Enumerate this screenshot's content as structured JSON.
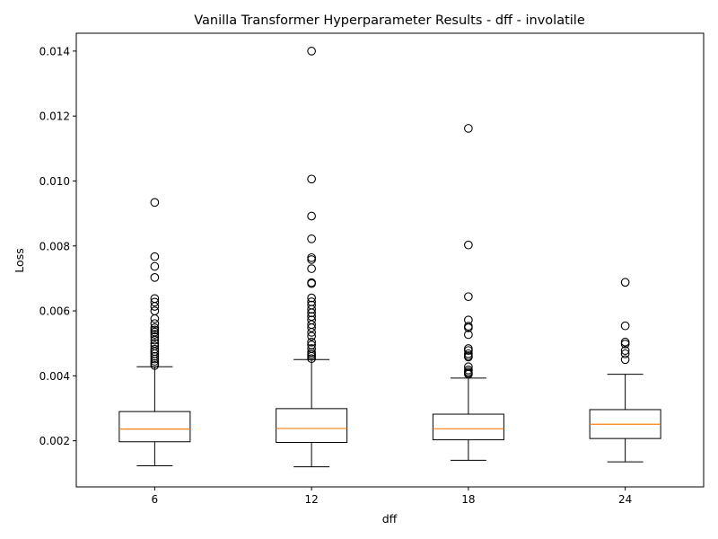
{
  "chart_data": {
    "type": "box",
    "title": "Vanilla Transformer Hyperparameter Results - dff - involatile",
    "xlabel": "dff",
    "ylabel": "Loss",
    "ylim": [
      0.00058,
      0.01455
    ],
    "yticks": [
      0.002,
      0.004,
      0.006,
      0.008,
      0.01,
      0.012,
      0.014
    ],
    "ytick_labels": [
      "0.002",
      "0.004",
      "0.006",
      "0.008",
      "0.010",
      "0.012",
      "0.014"
    ],
    "categories": [
      "6",
      "12",
      "18",
      "24"
    ],
    "colors": {
      "median": "#ff7f0e",
      "box": "#000000",
      "flier": "#000000"
    },
    "boxes": [
      {
        "category": "6",
        "whisker_low": 0.00123,
        "q1": 0.00197,
        "median": 0.00236,
        "q3": 0.0029,
        "whisker_high": 0.00428,
        "fliers": [
          0.00934,
          0.00767,
          0.00737,
          0.00703,
          0.00638,
          0.00627,
          0.00614,
          0.006,
          0.00576,
          0.00561,
          0.00548,
          0.00541,
          0.00535,
          0.00528,
          0.0052,
          0.0051,
          0.005,
          0.00492,
          0.00482,
          0.00475,
          0.00468,
          0.0046,
          0.00452,
          0.00445,
          0.00438,
          0.00432
        ]
      },
      {
        "category": "12",
        "whisker_low": 0.0012,
        "q1": 0.00195,
        "median": 0.00238,
        "q3": 0.00299,
        "whisker_high": 0.0045,
        "fliers": [
          0.014,
          0.01006,
          0.00892,
          0.00822,
          0.00764,
          0.00758,
          0.0073,
          0.00687,
          0.00684,
          0.0064,
          0.00628,
          0.00618,
          0.00605,
          0.00594,
          0.00583,
          0.00572,
          0.00558,
          0.00548,
          0.00534,
          0.00522,
          0.00504,
          0.00495,
          0.00484,
          0.00472,
          0.00466,
          0.0046,
          0.00453
        ]
      },
      {
        "category": "18",
        "whisker_low": 0.0014,
        "q1": 0.00203,
        "median": 0.00237,
        "q3": 0.00282,
        "whisker_high": 0.00393,
        "fliers": [
          0.01162,
          0.00803,
          0.00644,
          0.00572,
          0.00553,
          0.00548,
          0.00527,
          0.00484,
          0.00478,
          0.00468,
          0.00462,
          0.00458,
          0.00428,
          0.00418,
          0.00412,
          0.00408,
          0.00405
        ]
      },
      {
        "category": "24",
        "whisker_low": 0.00135,
        "q1": 0.00207,
        "median": 0.00251,
        "q3": 0.00296,
        "whisker_high": 0.00405,
        "fliers": [
          0.00688,
          0.00554,
          0.00504,
          0.00498,
          0.00478,
          0.00468,
          0.0045
        ]
      }
    ]
  }
}
